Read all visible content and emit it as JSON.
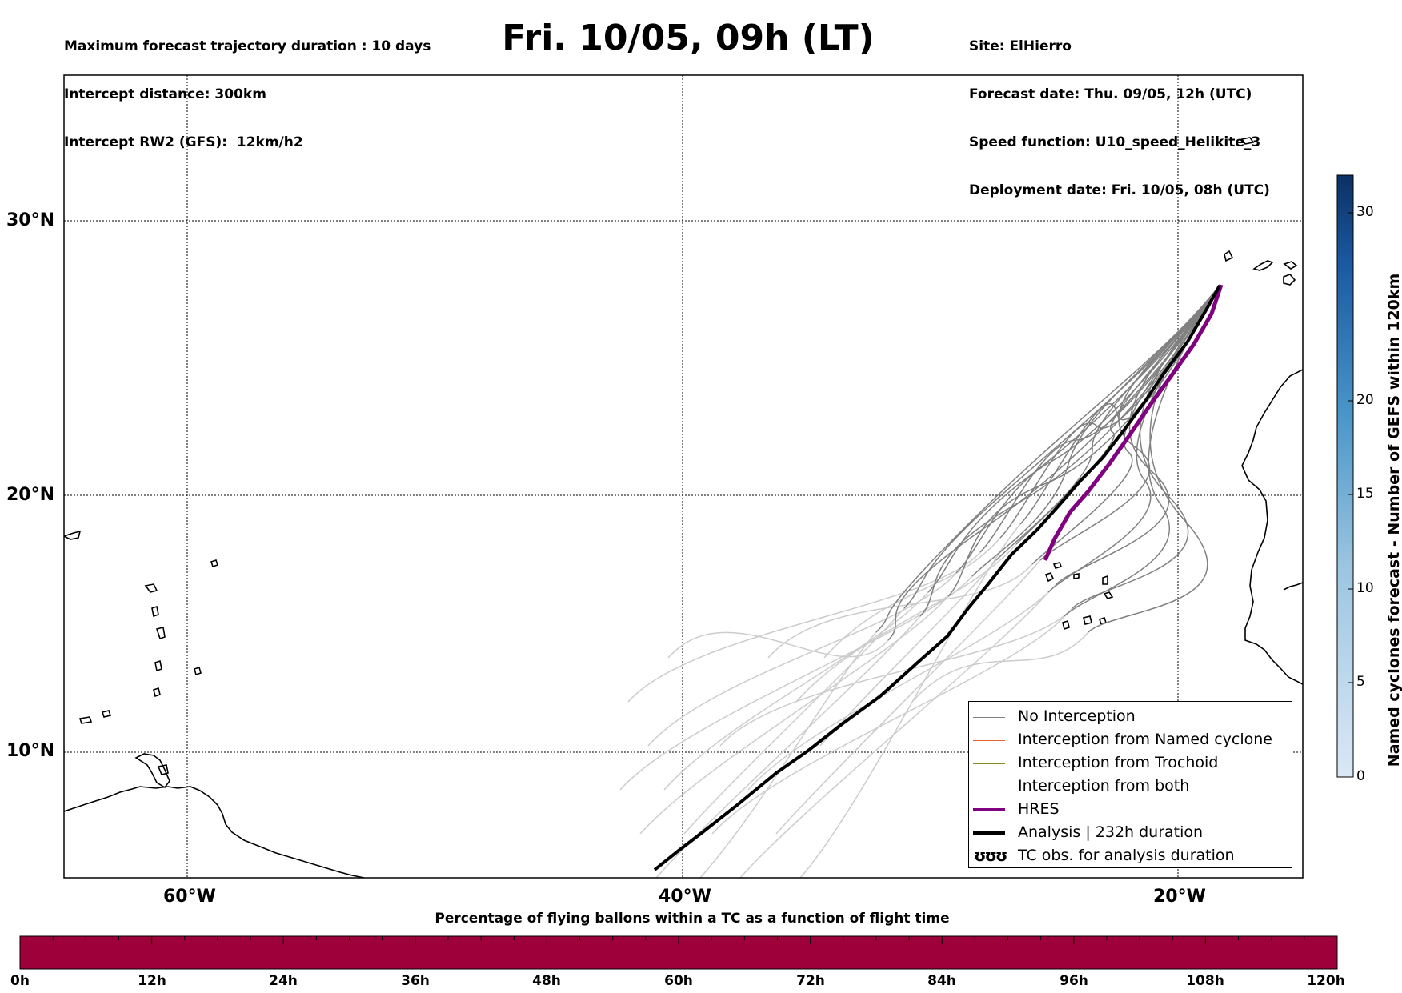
{
  "header": {
    "title": "Fri. 10/05, 09h (LT)",
    "left_lines": [
      "Maximum forecast trajectory duration : 10 days",
      "Intercept distance: 300km",
      "Intercept RW2 (GFS):  12km/h2"
    ],
    "right_lines": [
      "Site: ElHierro",
      "Forecast date: Thu. 09/05, 12h (UTC)",
      "Speed function: U10_speed_Helikite_3",
      "Deployment date: Fri. 10/05, 08h (UTC)"
    ]
  },
  "map": {
    "lat_labels": {
      "n30": "30°N",
      "n20": "20°N",
      "n10": "10°N"
    },
    "lon_labels": {
      "w60": "60°W",
      "w40": "40°W",
      "w20": "20°W"
    },
    "extent": {
      "lon_min": -65,
      "lon_max": -15,
      "lat_min": 5,
      "lat_max": 35.3
    },
    "colors": {
      "no_interception": "#808080",
      "named": "#e8602c",
      "trochoid": "#8a8a20",
      "both": "#2a8a2a",
      "hres": "#800080",
      "analysis": "#000000",
      "late": "#cccccc"
    }
  },
  "legend": {
    "no_interception": "No Interception",
    "named_cyclone": "Interception from Named cyclone",
    "trochoid": "Interception from Trochoid",
    "both": "Interception from both",
    "hres": "HRES",
    "analysis": "Analysis | 232h duration",
    "tc_obs": "TC obs. for analysis duration",
    "tc_symbol": "ʊʊʊ"
  },
  "colorbar": {
    "label": "Named cyclones forecast - Number of GEFS within 120km",
    "ticks": [
      "0",
      "5",
      "10",
      "15",
      "20",
      "30"
    ],
    "range": [
      0,
      32
    ]
  },
  "bottom_bar": {
    "title": "Percentage of flying ballons within a TC as a function of flight time",
    "ticks": [
      "0h",
      "12h",
      "24h",
      "36h",
      "48h",
      "60h",
      "72h",
      "84h",
      "96h",
      "108h",
      "120h"
    ],
    "fill_color": "#9e003a"
  }
}
